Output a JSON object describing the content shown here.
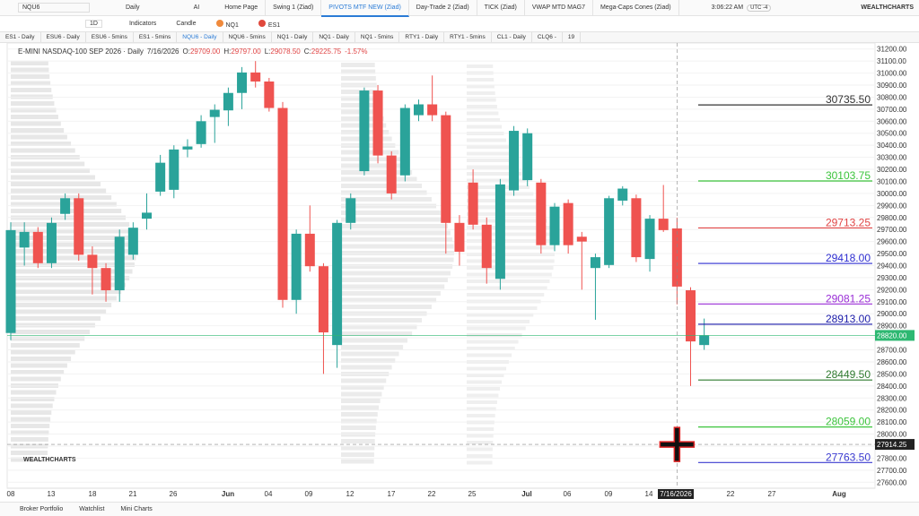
{
  "toolbar": {
    "symbol": "NQU6",
    "interval": "Daily",
    "ai": "AI",
    "tabs": [
      "Home Page",
      "Swing 1 (Ziad)",
      "PIVOTS MTF NEW (Ziad)",
      "Day-Trade 2 (Ziad)",
      "TICK (Ziad)",
      "VWAP MTD MAG7",
      "Mega-Caps Cones (Ziad)"
    ],
    "time": "3:06:22 AM",
    "timezone": "UTC -4",
    "brand": "WEALTHCHARTS"
  },
  "subbar": {
    "timeframe": "1D",
    "indicators": "Indicators",
    "style": "Candle",
    "compare": [
      "NQ1",
      "ES1"
    ]
  },
  "chart_tabs": [
    "ES1 - Daily",
    "ESU6 - Daily",
    "ESU6 - 5mins",
    "ES1 - 5mins",
    "NQU6 - Daily",
    "NQU6 - 5mins",
    "NQ1 - Daily",
    "NQ1 - Daily",
    "NQ1 - 5mins",
    "RTY1 - Daily",
    "RTY1 - 5mins",
    "CL1 - Daily",
    "CLQ6 -",
    "19"
  ],
  "header": {
    "title": "E-MINI NASDAQ-100 SEP 2026 · Daily",
    "date": "7/16/2026",
    "open_label": "O:",
    "open": "29709.00",
    "high_label": "H:",
    "high": "29797.00",
    "low_label": "L:",
    "low": "29078.50",
    "close_label": "C:",
    "close": "29225.75",
    "change": "-1.57%"
  },
  "price_axis": {
    "min": 27550,
    "max": 31250,
    "ticks": [
      {
        "value": 31200,
        "label": "31200.00"
      },
      {
        "value": 31100,
        "label": "31100.00"
      },
      {
        "value": 31000,
        "label": "31000.00"
      },
      {
        "value": 30900,
        "label": "30900.00"
      },
      {
        "value": 30800,
        "label": "30800.00"
      },
      {
        "value": 30700,
        "label": "30700.00"
      },
      {
        "value": 30600,
        "label": "30600.00"
      },
      {
        "value": 30500,
        "label": "30500.00"
      },
      {
        "value": 30400,
        "label": "30400.00"
      },
      {
        "value": 30300,
        "label": "30300.00"
      },
      {
        "value": 30200,
        "label": "30200.00"
      },
      {
        "value": 30100,
        "label": "30100.00"
      },
      {
        "value": 30000,
        "label": "30000.00"
      },
      {
        "value": 29900,
        "label": "29900.00"
      },
      {
        "value": 29800,
        "label": "29800.00"
      },
      {
        "value": 29700,
        "label": "29700.00"
      },
      {
        "value": 29600,
        "label": "29600.00"
      },
      {
        "value": 29500,
        "label": "29500.00"
      },
      {
        "value": 29400,
        "label": "29400.00"
      },
      {
        "value": 29300,
        "label": "29300.00"
      },
      {
        "value": 29200,
        "label": "29200.00"
      },
      {
        "value": 29100,
        "label": "29100.00"
      },
      {
        "value": 29000,
        "label": "29000.00"
      },
      {
        "value": 28900,
        "label": "28900.00"
      },
      {
        "value": 28800,
        "label": "28800.00"
      },
      {
        "value": 28700,
        "label": "28700.00"
      },
      {
        "value": 28600,
        "label": "28600.00"
      },
      {
        "value": 28500,
        "label": "28500.00"
      },
      {
        "value": 28400,
        "label": "28400.00"
      },
      {
        "value": 28300,
        "label": "28300.00"
      },
      {
        "value": 28200,
        "label": "28200.00"
      },
      {
        "value": 28100,
        "label": "28100.00"
      },
      {
        "value": 28000,
        "label": "28000.00"
      },
      {
        "value": 27900,
        "label": "27900.00"
      },
      {
        "value": 27800,
        "label": "27800.00"
      },
      {
        "value": 27700,
        "label": "27700.00"
      },
      {
        "value": 27600,
        "label": "27600.00"
      }
    ]
  },
  "levels": [
    {
      "value": 30735.5,
      "label": "30735.50",
      "color": "#333333"
    },
    {
      "value": 30103.75,
      "label": "30103.75",
      "color": "#3cc43c"
    },
    {
      "value": 29713.25,
      "label": "29713.25",
      "color": "#e04545"
    },
    {
      "value": 29418,
      "label": "29418.00",
      "color": "#2e2ed0"
    },
    {
      "value": 29081.25,
      "label": "29081.25",
      "color": "#9a2ed6"
    },
    {
      "value": 28913,
      "label": "28913.00",
      "color": "#1a1aa8"
    },
    {
      "value": 28449.5,
      "label": "28449.50",
      "color": "#2f7a2f"
    },
    {
      "value": 28059,
      "label": "28059.00",
      "color": "#3cc43c"
    },
    {
      "value": 27763.5,
      "label": "27763.50",
      "color": "#3b3bd0"
    }
  ],
  "markers": [
    {
      "value": 28820,
      "label": "28820.00",
      "color": "#2eb872"
    },
    {
      "value": 27914.25,
      "label": "27914.25",
      "color": "#222222"
    }
  ],
  "candles": [
    [
      28840,
      29760,
      28780,
      29695
    ],
    [
      29550,
      29760,
      29400,
      29680
    ],
    [
      29680,
      29720,
      29380,
      29420
    ],
    [
      29420,
      29800,
      29380,
      29755
    ],
    [
      29830,
      30000,
      29780,
      29960
    ],
    [
      29960,
      30000,
      29440,
      29490
    ],
    [
      29490,
      29560,
      29160,
      29380
    ],
    [
      29380,
      29420,
      29100,
      29195
    ],
    [
      29195,
      29700,
      29100,
      29640
    ],
    [
      29490,
      29760,
      29450,
      29715
    ],
    [
      29790,
      30000,
      29700,
      29840
    ],
    [
      30015,
      30320,
      29980,
      30255
    ],
    [
      30030,
      30400,
      29960,
      30365
    ],
    [
      30365,
      30450,
      30300,
      30390
    ],
    [
      30410,
      30650,
      30380,
      30600
    ],
    [
      30635,
      30740,
      30420,
      30695
    ],
    [
      30690,
      30880,
      30560,
      30835
    ],
    [
      30835,
      31050,
      30700,
      31005
    ],
    [
      31005,
      31100,
      30880,
      30930
    ],
    [
      30930,
      30960,
      30680,
      30710
    ],
    [
      30710,
      30760,
      29050,
      29115
    ],
    [
      29115,
      29700,
      29000,
      29665
    ],
    [
      29665,
      29900,
      29350,
      29395
    ],
    [
      29395,
      29420,
      28500,
      28845
    ],
    [
      28740,
      29780,
      28550,
      29755
    ],
    [
      29755,
      30000,
      29700,
      29960
    ],
    [
      30185,
      30880,
      30150,
      30855
    ],
    [
      30855,
      30900,
      30250,
      30315
    ],
    [
      30315,
      30350,
      29950,
      30000
    ],
    [
      30150,
      30740,
      30100,
      30710
    ],
    [
      30650,
      30780,
      30600,
      30740
    ],
    [
      30740,
      30980,
      30600,
      30650
    ],
    [
      30650,
      30680,
      29500,
      29755
    ],
    [
      29755,
      29820,
      29400,
      29515
    ],
    [
      30090,
      30200,
      29700,
      29740
    ],
    [
      29740,
      29800,
      29250,
      29380
    ],
    [
      29290,
      30120,
      29200,
      30075
    ],
    [
      30025,
      30560,
      29980,
      30520
    ],
    [
      30110,
      30540,
      30060,
      30500
    ],
    [
      30090,
      30120,
      29500,
      29570
    ],
    [
      29570,
      29920,
      29520,
      29890
    ],
    [
      29920,
      29950,
      29500,
      29570
    ],
    [
      29640,
      29680,
      29200,
      29600
    ],
    [
      29380,
      29500,
      28950,
      29470
    ],
    [
      29405,
      29980,
      29380,
      29960
    ],
    [
      29940,
      30060,
      29900,
      30040
    ],
    [
      29960,
      29990,
      29430,
      29470
    ],
    [
      29455,
      29820,
      29350,
      29790
    ],
    [
      29790,
      30070,
      29680,
      29695
    ],
    [
      29709,
      29797,
      29078.5,
      29225.75
    ],
    [
      29195,
      29220,
      28400,
      28770
    ],
    [
      28740,
      28960,
      28700,
      28820
    ]
  ],
  "x_labels": [
    "08",
    "13",
    "18",
    "21",
    "26",
    "Jun",
    "04",
    "09",
    "12",
    "17",
    "22",
    "25",
    "Jul",
    "06",
    "09",
    "14",
    "7/16/2026",
    "22",
    "27",
    "Aug"
  ],
  "brand_watermark": "WEALTHCHARTS",
  "bottom_tabs": [
    "Broker Portfolio",
    "Watchlist",
    "Mini Charts"
  ]
}
